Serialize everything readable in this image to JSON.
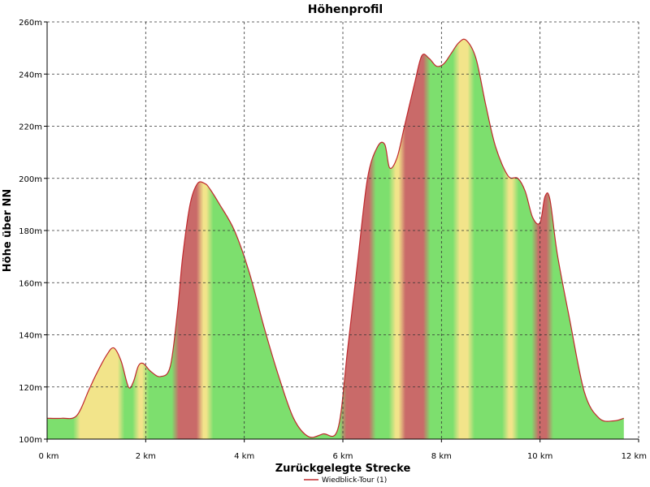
{
  "chart_data": {
    "type": "area",
    "title": "Höhenprofil",
    "xlabel": "Zurückgelegte Strecke",
    "ylabel": "Höhe über NN",
    "xlim": [
      0,
      12
    ],
    "ylim": [
      100,
      260
    ],
    "x_ticks": [
      {
        "value": 0,
        "label": "0 km"
      },
      {
        "value": 2,
        "label": "2 km"
      },
      {
        "value": 4,
        "label": "4 km"
      },
      {
        "value": 6,
        "label": "6 km"
      },
      {
        "value": 8,
        "label": "8 km"
      },
      {
        "value": 10,
        "label": "10 km"
      },
      {
        "value": 12,
        "label": "12 km"
      }
    ],
    "y_ticks": [
      {
        "value": 100,
        "label": "100m"
      },
      {
        "value": 120,
        "label": "120m"
      },
      {
        "value": 140,
        "label": "140m"
      },
      {
        "value": 160,
        "label": "160m"
      },
      {
        "value": 180,
        "label": "180m"
      },
      {
        "value": 200,
        "label": "200m"
      },
      {
        "value": 220,
        "label": "220m"
      },
      {
        "value": 240,
        "label": "240m"
      },
      {
        "value": 260,
        "label": "260m"
      }
    ],
    "grid": true,
    "legend_position": "bottom-center",
    "series": [
      {
        "name": "Wiedblick-Tour (1)",
        "color": "#c0282d",
        "x": [
          0,
          0.3,
          0.6,
          0.85,
          1.0,
          1.2,
          1.35,
          1.5,
          1.65,
          1.75,
          1.85,
          1.95,
          2.1,
          2.3,
          2.5,
          2.65,
          2.75,
          2.9,
          3.05,
          3.2,
          3.3,
          3.5,
          3.8,
          4.1,
          4.4,
          4.7,
          5.0,
          5.3,
          5.6,
          5.9,
          6.1,
          6.3,
          6.5,
          6.7,
          6.85,
          6.95,
          7.1,
          7.25,
          7.45,
          7.6,
          7.75,
          7.9,
          8.05,
          8.2,
          8.35,
          8.5,
          8.7,
          8.9,
          9.1,
          9.35,
          9.55,
          9.7,
          9.85,
          10.0,
          10.1,
          10.2,
          10.35,
          10.6,
          10.9,
          11.2,
          11.5,
          11.7
        ],
        "y": [
          108,
          108,
          109,
          119,
          125,
          132,
          135,
          130,
          120,
          122,
          128,
          129,
          126,
          124,
          128,
          150,
          170,
          190,
          198,
          198,
          196,
          190,
          180,
          164,
          143,
          124,
          108,
          101,
          102,
          104,
          135,
          168,
          200,
          212,
          213,
          204,
          208,
          220,
          236,
          247,
          246,
          243,
          244,
          248,
          252,
          253,
          246,
          228,
          212,
          201,
          200,
          195,
          185,
          183,
          193,
          192,
          171,
          146,
          118,
          108,
          107,
          108
        ]
      }
    ],
    "gradient_bands": [
      {
        "from": 0,
        "to": 0.6,
        "color": "#7ddf6e"
      },
      {
        "from": 0.6,
        "to": 1.5,
        "color": "#f2e48a"
      },
      {
        "from": 1.5,
        "to": 1.8,
        "color": "#7ddf6e"
      },
      {
        "from": 1.8,
        "to": 2.0,
        "color": "#f2e48a"
      },
      {
        "from": 2.0,
        "to": 2.6,
        "color": "#7ddf6e"
      },
      {
        "from": 2.6,
        "to": 3.1,
        "color": "#c96a69"
      },
      {
        "from": 3.1,
        "to": 3.3,
        "color": "#f2e48a"
      },
      {
        "from": 3.3,
        "to": 6.0,
        "color": "#7ddf6e"
      },
      {
        "from": 6.0,
        "to": 6.6,
        "color": "#c96a69"
      },
      {
        "from": 6.6,
        "to": 7.0,
        "color": "#7ddf6e"
      },
      {
        "from": 7.0,
        "to": 7.2,
        "color": "#f2e48a"
      },
      {
        "from": 7.2,
        "to": 7.7,
        "color": "#c96a69"
      },
      {
        "from": 7.7,
        "to": 8.3,
        "color": "#7ddf6e"
      },
      {
        "from": 8.3,
        "to": 8.6,
        "color": "#f2e48a"
      },
      {
        "from": 8.6,
        "to": 9.3,
        "color": "#7ddf6e"
      },
      {
        "from": 9.3,
        "to": 9.5,
        "color": "#f2e48a"
      },
      {
        "from": 9.5,
        "to": 9.9,
        "color": "#7ddf6e"
      },
      {
        "from": 9.9,
        "to": 10.2,
        "color": "#c96a69"
      },
      {
        "from": 10.2,
        "to": 11.7,
        "color": "#7ddf6e"
      }
    ]
  }
}
